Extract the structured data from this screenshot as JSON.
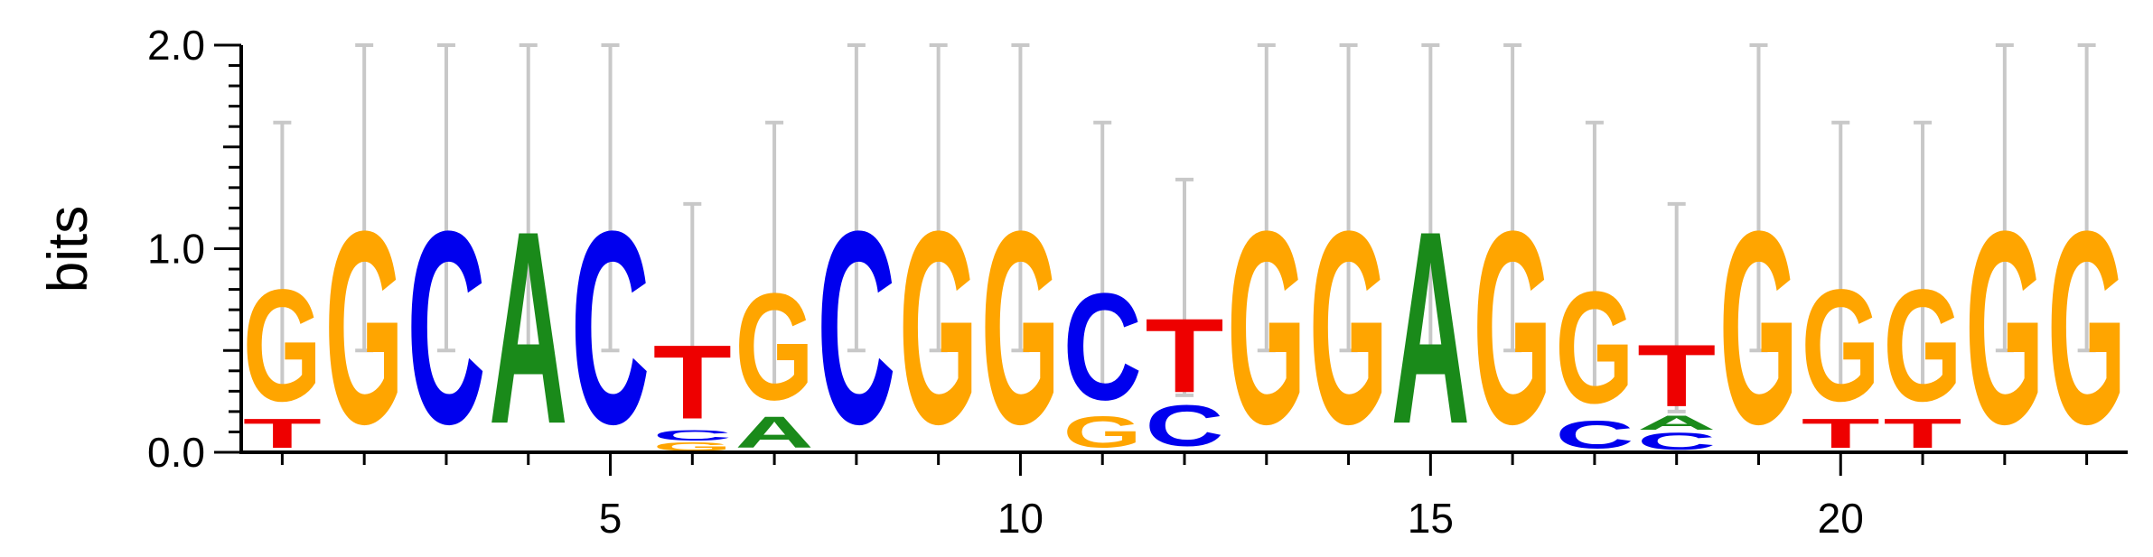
{
  "chart_data": {
    "type": "sequence-logo",
    "title": "",
    "xlabel": "",
    "ylabel": "bits",
    "ylim": [
      0,
      2.0
    ],
    "xlim": [
      0.5,
      23.5
    ],
    "y_ticks": [
      "0.0",
      "1.0",
      "2.0"
    ],
    "y_tick_values": [
      0,
      1,
      2
    ],
    "x_ticks": [
      5,
      10,
      15,
      20
    ],
    "grid": false,
    "colors": {
      "A": "#1a8a1a",
      "C": "#0000ee",
      "G": "#ffa500",
      "T": "#ee0000",
      "errorbar": "#c8c8c8"
    },
    "positions": [
      {
        "pos": 1,
        "err": [
          0.28,
          1.62
        ],
        "letters": [
          {
            "l": "T",
            "h": 0.17
          },
          {
            "l": "G",
            "h": 0.65
          }
        ]
      },
      {
        "pos": 2,
        "err": [
          0.5,
          2.0
        ],
        "letters": [
          {
            "l": "G",
            "h": 1.12
          }
        ]
      },
      {
        "pos": 3,
        "err": [
          0.5,
          2.0
        ],
        "letters": [
          {
            "l": "C",
            "h": 1.12
          }
        ]
      },
      {
        "pos": 4,
        "err": [
          0.5,
          2.0
        ],
        "letters": [
          {
            "l": "A",
            "h": 1.12
          }
        ]
      },
      {
        "pos": 5,
        "err": [
          0.5,
          2.0
        ],
        "letters": [
          {
            "l": "C",
            "h": 1.12
          }
        ]
      },
      {
        "pos": 6,
        "err": [
          0.2,
          1.22
        ],
        "letters": [
          {
            "l": "G",
            "h": 0.05
          },
          {
            "l": "C",
            "h": 0.06
          },
          {
            "l": "T",
            "h": 0.43
          }
        ]
      },
      {
        "pos": 7,
        "err": [
          0.28,
          1.62
        ],
        "letters": [
          {
            "l": "A",
            "h": 0.18
          },
          {
            "l": "G",
            "h": 0.62
          }
        ]
      },
      {
        "pos": 8,
        "err": [
          0.5,
          2.0
        ],
        "letters": [
          {
            "l": "C",
            "h": 1.12
          }
        ]
      },
      {
        "pos": 9,
        "err": [
          0.5,
          2.0
        ],
        "letters": [
          {
            "l": "G",
            "h": 1.12
          }
        ]
      },
      {
        "pos": 10,
        "err": [
          0.5,
          2.0
        ],
        "letters": [
          {
            "l": "G",
            "h": 1.12
          }
        ]
      },
      {
        "pos": 11,
        "err": [
          0.28,
          1.62
        ],
        "letters": [
          {
            "l": "G",
            "h": 0.18
          },
          {
            "l": "C",
            "h": 0.62
          }
        ]
      },
      {
        "pos": 12,
        "err": [
          0.28,
          1.34
        ],
        "letters": [
          {
            "l": "C",
            "h": 0.24
          },
          {
            "l": "T",
            "h": 0.43
          }
        ]
      },
      {
        "pos": 13,
        "err": [
          0.5,
          2.0
        ],
        "letters": [
          {
            "l": "G",
            "h": 1.12
          }
        ]
      },
      {
        "pos": 14,
        "err": [
          0.5,
          2.0
        ],
        "letters": [
          {
            "l": "G",
            "h": 1.12
          }
        ]
      },
      {
        "pos": 15,
        "err": [
          0.5,
          2.0
        ],
        "letters": [
          {
            "l": "A",
            "h": 1.12
          }
        ]
      },
      {
        "pos": 16,
        "err": [
          0.5,
          2.0
        ],
        "letters": [
          {
            "l": "G",
            "h": 1.12
          }
        ]
      },
      {
        "pos": 17,
        "err": [
          0.28,
          1.62
        ],
        "letters": [
          {
            "l": "C",
            "h": 0.16
          },
          {
            "l": "G",
            "h": 0.65
          }
        ]
      },
      {
        "pos": 18,
        "err": [
          0.2,
          1.22
        ],
        "letters": [
          {
            "l": "C",
            "h": 0.1
          },
          {
            "l": "A",
            "h": 0.08
          },
          {
            "l": "T",
            "h": 0.36
          }
        ]
      },
      {
        "pos": 19,
        "err": [
          0.5,
          2.0
        ],
        "letters": [
          {
            "l": "G",
            "h": 1.12
          }
        ]
      },
      {
        "pos": 20,
        "err": [
          0.28,
          1.62
        ],
        "letters": [
          {
            "l": "T",
            "h": 0.17
          },
          {
            "l": "G",
            "h": 0.65
          }
        ]
      },
      {
        "pos": 21,
        "err": [
          0.28,
          1.62
        ],
        "letters": [
          {
            "l": "T",
            "h": 0.17
          },
          {
            "l": "G",
            "h": 0.65
          }
        ]
      },
      {
        "pos": 22,
        "err": [
          0.5,
          2.0
        ],
        "letters": [
          {
            "l": "G",
            "h": 1.12
          }
        ]
      },
      {
        "pos": 23,
        "err": [
          0.5,
          2.0
        ],
        "letters": [
          {
            "l": "G",
            "h": 1.12
          }
        ]
      }
    ]
  }
}
